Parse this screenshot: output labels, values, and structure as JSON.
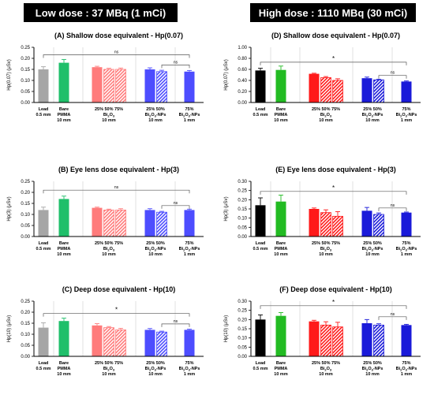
{
  "headers": {
    "left": "Low dose : 37 MBq (1 mCi)",
    "right": "High dose : 1110 MBq (30 mCi)"
  },
  "groups": [
    {
      "lines": [
        [
          "Lead"
        ],
        [
          "0.5 mm"
        ]
      ]
    },
    {
      "lines": [
        [
          "Bare"
        ],
        [
          "PMMA"
        ],
        [
          "10 mm"
        ]
      ]
    },
    {
      "lines": [
        [
          "25%  50%  75%"
        ],
        [
          "Bi",
          "2",
          "O",
          "3"
        ],
        [
          "10 mm"
        ]
      ]
    },
    {
      "lines": [
        [
          "25%  50%"
        ],
        [
          "Bi",
          "2",
          "O",
          "3",
          "-NPs"
        ],
        [
          "10 mm"
        ]
      ]
    },
    {
      "lines": [
        [
          "75%"
        ],
        [
          "Bi",
          "2",
          "O",
          "3",
          "-NPs"
        ],
        [
          "1 mm"
        ]
      ]
    }
  ],
  "colors": {
    "low": [
      "#a6a6a6",
      "#1fbf6a",
      "#ff7b7b",
      "#4d4dff"
    ],
    "high": [
      "#000000",
      "#22bb22",
      "#ff1a1a",
      "#1a1ad9"
    ]
  },
  "chart_data": [
    {
      "id": "A",
      "type": "bar",
      "title": "(A) Shallow dose equivalent - Hp(0.07)",
      "ylabel": "Hp(0.07) (μSv)",
      "ylim": [
        0,
        0.25
      ],
      "yticks": [
        "0.00",
        "0.05",
        "0.10",
        "0.15",
        "0.20",
        "0.25"
      ],
      "palette": "low",
      "values": [
        0.15,
        0.18,
        0.16,
        0.15,
        0.15,
        0.15,
        0.14,
        0.14
      ],
      "errors": [
        0.012,
        0.015,
        0.004,
        0.005,
        0.006,
        0.007,
        0.006,
        0.005
      ],
      "annotations": [
        {
          "from": 0,
          "to": 7,
          "level": 0.216,
          "text": "ns"
        },
        {
          "from": 6,
          "to": 7,
          "level": 0.17,
          "text": "ns"
        }
      ]
    },
    {
      "id": "D",
      "type": "bar",
      "title": "(D) Shallow dose equivalent - Hp(0.07)",
      "ylabel": "Hp(0.07) (μSv)",
      "ylim": [
        0,
        1.0
      ],
      "yticks": [
        "0.00",
        "0.20",
        "0.40",
        "0.60",
        "0.80",
        "1.00"
      ],
      "palette": "high",
      "values": [
        0.58,
        0.59,
        0.52,
        0.45,
        0.4,
        0.44,
        0.41,
        0.38
      ],
      "errors": [
        0.04,
        0.07,
        0.01,
        0.02,
        0.03,
        0.02,
        0.01,
        0.01
      ],
      "annotations": [
        {
          "from": 0,
          "to": 7,
          "level": 0.73,
          "text": "*"
        },
        {
          "from": 6,
          "to": 7,
          "level": 0.49,
          "text": "ns"
        }
      ]
    },
    {
      "id": "B",
      "type": "bar",
      "title": "(B) Eye lens dose equivalent - Hp(3)",
      "ylabel": "Hp(3) (μSv)",
      "ylim": [
        0,
        0.25
      ],
      "yticks": [
        "0.00",
        "0.05",
        "0.10",
        "0.15",
        "0.20",
        "0.25"
      ],
      "palette": "low",
      "values": [
        0.12,
        0.17,
        0.13,
        0.12,
        0.12,
        0.12,
        0.11,
        0.12
      ],
      "errors": [
        0.013,
        0.013,
        0.003,
        0.004,
        0.006,
        0.006,
        0.004,
        0.004
      ],
      "annotations": [
        {
          "from": 0,
          "to": 7,
          "level": 0.21,
          "text": "ns"
        },
        {
          "from": 6,
          "to": 7,
          "level": 0.14,
          "text": "ns"
        }
      ]
    },
    {
      "id": "E",
      "type": "bar",
      "title": "(E) Eye lens dose equivalent - Hp(3)",
      "ylabel": "Hp(3) (μSv)",
      "ylim": [
        0,
        0.3
      ],
      "yticks": [
        "0.00",
        "0.05",
        "0.10",
        "0.15",
        "0.20",
        "0.25",
        "0.30"
      ],
      "palette": "high",
      "values": [
        0.17,
        0.19,
        0.15,
        0.13,
        0.11,
        0.14,
        0.12,
        0.13
      ],
      "errors": [
        0.04,
        0.035,
        0.005,
        0.015,
        0.025,
        0.018,
        0.008,
        0.003
      ],
      "annotations": [
        {
          "from": 0,
          "to": 7,
          "level": 0.245,
          "text": "*"
        },
        {
          "from": 6,
          "to": 7,
          "level": 0.155,
          "text": "ns"
        }
      ]
    },
    {
      "id": "C",
      "type": "bar",
      "title": "(C) Deep dose equivalent - Hp(10)",
      "ylabel": "Hp(10) (μSv)",
      "ylim": [
        0,
        0.25
      ],
      "yticks": [
        "0.00",
        "0.05",
        "0.10",
        "0.15",
        "0.20",
        "0.25"
      ],
      "palette": "low",
      "values": [
        0.13,
        0.16,
        0.14,
        0.13,
        0.12,
        0.12,
        0.11,
        0.12
      ],
      "errors": [
        0.022,
        0.013,
        0.008,
        0.005,
        0.007,
        0.006,
        0.004,
        0.003
      ],
      "annotations": [
        {
          "from": 0,
          "to": 7,
          "level": 0.194,
          "text": "*"
        },
        {
          "from": 6,
          "to": 7,
          "level": 0.147,
          "text": "ns"
        }
      ]
    },
    {
      "id": "F",
      "type": "bar",
      "title": "(F) Deep dose equivalent - Hp(10)",
      "ylabel": "Hp(10) (μSv)",
      "ylim": [
        0,
        0.3
      ],
      "yticks": [
        "0.00",
        "0.05",
        "0.10",
        "0.15",
        "0.20",
        "0.25",
        "0.30"
      ],
      "palette": "high",
      "values": [
        0.2,
        0.22,
        0.19,
        0.17,
        0.16,
        0.18,
        0.17,
        0.17
      ],
      "errors": [
        0.025,
        0.018,
        0.006,
        0.018,
        0.025,
        0.02,
        0.007,
        0.004
      ],
      "annotations": [
        {
          "from": 0,
          "to": 7,
          "level": 0.275,
          "text": "*"
        },
        {
          "from": 6,
          "to": 7,
          "level": 0.215,
          "text": "ns"
        }
      ]
    }
  ]
}
